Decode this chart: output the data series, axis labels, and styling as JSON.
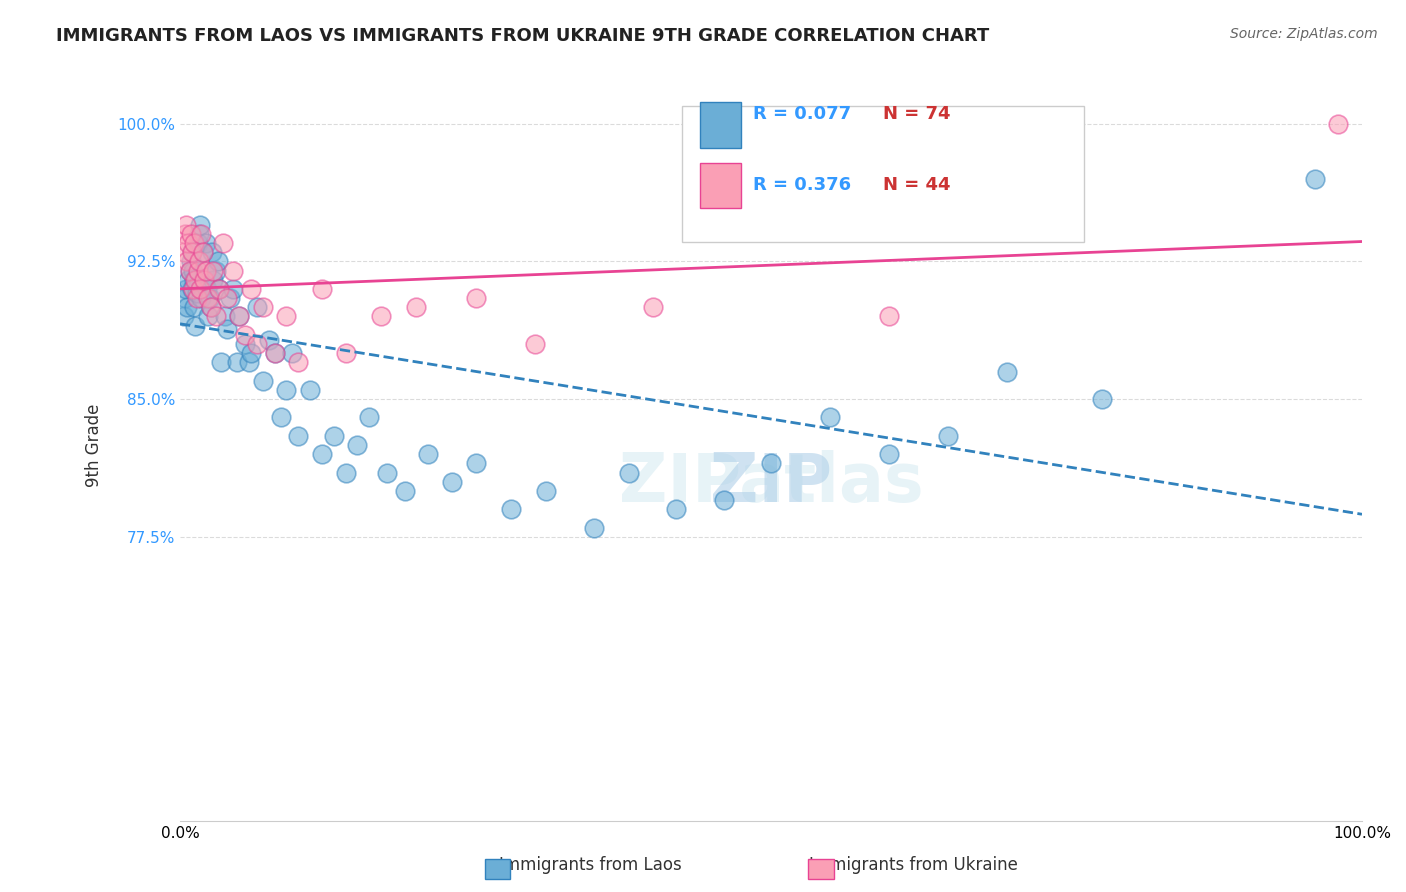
{
  "title": "IMMIGRANTS FROM LAOS VS IMMIGRANTS FROM UKRAINE 9TH GRADE CORRELATION CHART",
  "source": "Source: ZipAtlas.com",
  "xlabel": "",
  "ylabel": "9th Grade",
  "xlim": [
    0.0,
    1.0
  ],
  "ylim": [
    0.62,
    1.03
  ],
  "yticks": [
    0.775,
    0.85,
    0.925,
    1.0
  ],
  "ytick_labels": [
    "77.5%",
    "85.0%",
    "92.5%",
    "100.0%"
  ],
  "xtick_labels": [
    "0.0%",
    "100.0%"
  ],
  "legend_r_laos": "R = 0.077",
  "legend_n_laos": "N = 74",
  "legend_r_ukraine": "R = 0.376",
  "legend_n_ukraine": "N = 44",
  "color_laos": "#6baed6",
  "color_ukraine": "#fa9fb5",
  "color_laos_line": "#3182bd",
  "color_ukraine_line": "#e84393",
  "watermark": "ZIPatlas",
  "laos_x": [
    0.003,
    0.004,
    0.005,
    0.006,
    0.007,
    0.008,
    0.009,
    0.01,
    0.01,
    0.011,
    0.012,
    0.012,
    0.013,
    0.014,
    0.015,
    0.015,
    0.016,
    0.017,
    0.018,
    0.019,
    0.02,
    0.021,
    0.022,
    0.023,
    0.024,
    0.025,
    0.026,
    0.027,
    0.028,
    0.03,
    0.032,
    0.033,
    0.035,
    0.038,
    0.04,
    0.042,
    0.045,
    0.048,
    0.05,
    0.055,
    0.058,
    0.06,
    0.065,
    0.07,
    0.075,
    0.08,
    0.085,
    0.09,
    0.095,
    0.1,
    0.11,
    0.12,
    0.13,
    0.14,
    0.15,
    0.16,
    0.175,
    0.19,
    0.21,
    0.23,
    0.25,
    0.28,
    0.31,
    0.35,
    0.38,
    0.42,
    0.46,
    0.5,
    0.55,
    0.6,
    0.65,
    0.7,
    0.78,
    0.96
  ],
  "laos_y": [
    0.895,
    0.905,
    0.91,
    0.9,
    0.915,
    0.92,
    0.925,
    0.93,
    0.91,
    0.92,
    0.9,
    0.915,
    0.89,
    0.908,
    0.912,
    0.935,
    0.94,
    0.945,
    0.905,
    0.93,
    0.92,
    0.912,
    0.935,
    0.91,
    0.895,
    0.905,
    0.9,
    0.93,
    0.915,
    0.92,
    0.925,
    0.91,
    0.87,
    0.895,
    0.888,
    0.905,
    0.91,
    0.87,
    0.895,
    0.88,
    0.87,
    0.875,
    0.9,
    0.86,
    0.882,
    0.875,
    0.84,
    0.855,
    0.875,
    0.83,
    0.855,
    0.82,
    0.83,
    0.81,
    0.825,
    0.84,
    0.81,
    0.8,
    0.82,
    0.805,
    0.815,
    0.79,
    0.8,
    0.78,
    0.81,
    0.79,
    0.795,
    0.815,
    0.84,
    0.82,
    0.83,
    0.865,
    0.85,
    0.97
  ],
  "ukraine_x": [
    0.003,
    0.004,
    0.005,
    0.006,
    0.007,
    0.008,
    0.009,
    0.01,
    0.011,
    0.012,
    0.013,
    0.014,
    0.015,
    0.016,
    0.017,
    0.018,
    0.019,
    0.02,
    0.022,
    0.024,
    0.026,
    0.028,
    0.03,
    0.033,
    0.036,
    0.04,
    0.045,
    0.05,
    0.055,
    0.06,
    0.065,
    0.07,
    0.08,
    0.09,
    0.1,
    0.12,
    0.14,
    0.17,
    0.2,
    0.25,
    0.3,
    0.4,
    0.6,
    0.98
  ],
  "ukraine_y": [
    0.93,
    0.94,
    0.945,
    0.925,
    0.935,
    0.92,
    0.94,
    0.93,
    0.91,
    0.935,
    0.915,
    0.905,
    0.92,
    0.925,
    0.91,
    0.94,
    0.93,
    0.915,
    0.92,
    0.905,
    0.9,
    0.92,
    0.895,
    0.91,
    0.935,
    0.905,
    0.92,
    0.895,
    0.885,
    0.91,
    0.88,
    0.9,
    0.875,
    0.895,
    0.87,
    0.91,
    0.875,
    0.895,
    0.9,
    0.905,
    0.88,
    0.9,
    0.895,
    1.0
  ]
}
